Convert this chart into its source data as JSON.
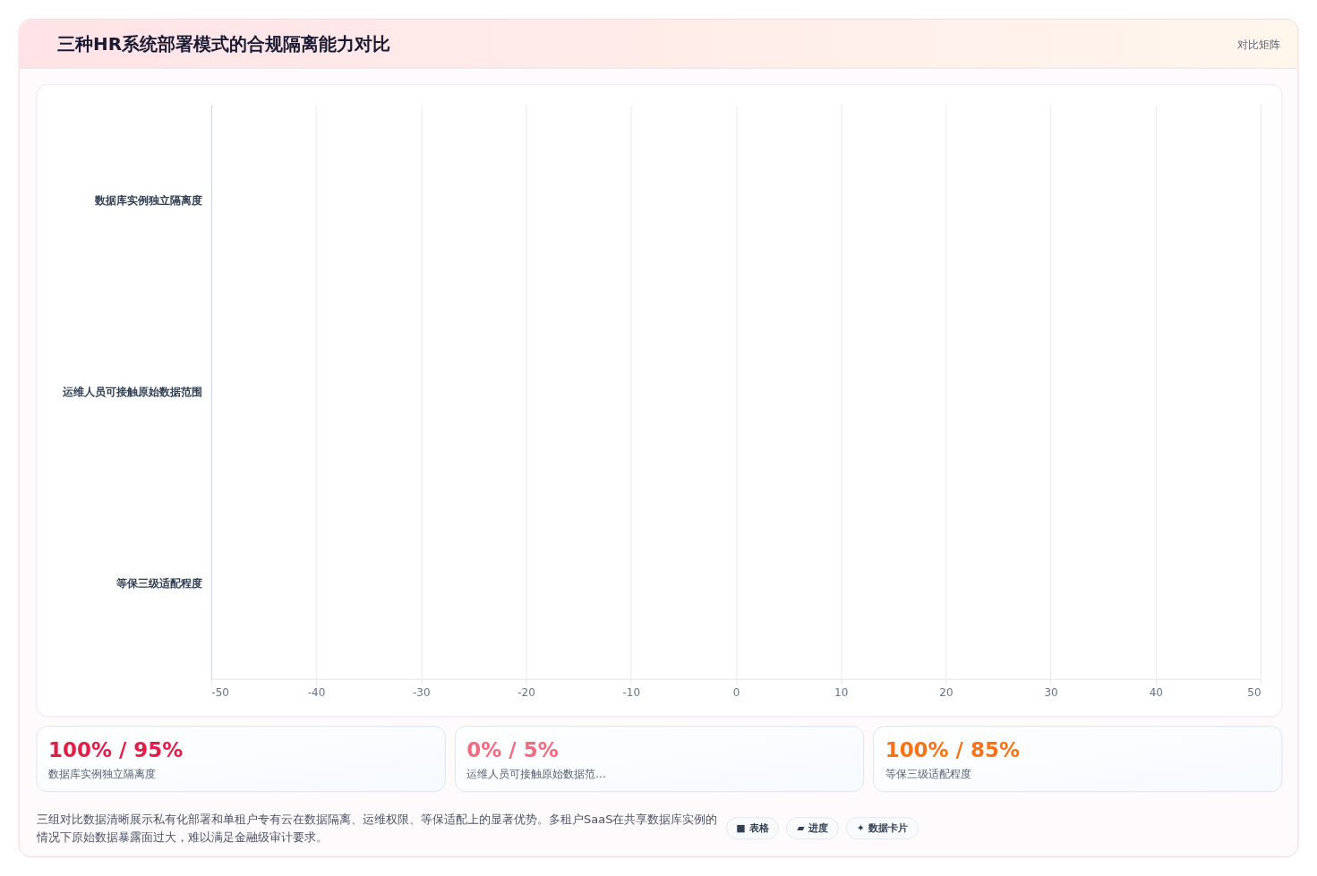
{
  "chart_data": [
    {
      "type": "bar",
      "title": "三种HR系统部署模式的合规隔离能力对比",
      "subtitle": "对比矩阵",
      "orientation": "horizontal",
      "categories": [
        "数据库实例独立隔离度",
        "运维人员可接触原始数据范围",
        "等保三级适配程度"
      ],
      "values": [
        null,
        null,
        null
      ],
      "xlim": [
        -50,
        50
      ],
      "xticks": [
        -50,
        -40,
        -30,
        -20,
        -10,
        0,
        10,
        20,
        30,
        40,
        50
      ],
      "grid": "x"
    },
    {
      "type": "other",
      "annotations": [
        "100% / 95%",
        "数据库实例独立隔离度",
        "0% / 5%",
        "运维人员可接触原始数据范...",
        "100% / 85%",
        "等保三级适配程度"
      ],
      "colors": [
        "#e11d48",
        "#f26b80",
        "#f97316"
      ]
    },
    {
      "type": "other",
      "annotations": [
        "三组对比数据清晰展示私有化部署和单租户专有云在数据隔离、运维权限、等保适配上的显著优势。多租户SaaS在共享数据库实例的情况下原始数据暴露面过大，难以满足金融级审计要求。",
        "■ 表格",
        "▰ 进度",
        "✦ 数据卡片"
      ]
    }
  ]
}
